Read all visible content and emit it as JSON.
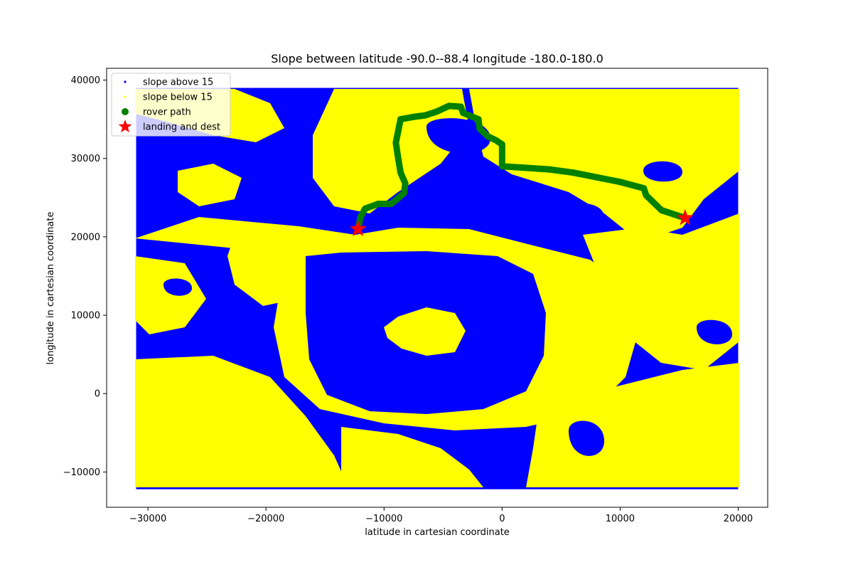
{
  "chart_data": {
    "type": "scatter",
    "title": "Slope between latitude -90.0--88.4 longitude -180.0-180.0",
    "xlabel": "latitude in cartesian coordinate",
    "ylabel": "longitude in cartesian coordinate",
    "xlim": [
      -33500,
      22500
    ],
    "ylim": [
      -14500,
      41500
    ],
    "xticks": [
      -30000,
      -20000,
      -10000,
      0,
      10000,
      20000
    ],
    "yticks": [
      -10000,
      0,
      10000,
      20000,
      30000,
      40000
    ],
    "xtick_labels": [
      "−30000",
      "−20000",
      "−10000",
      "0",
      "10000",
      "20000"
    ],
    "ytick_labels": [
      "−10000",
      "0",
      "10000",
      "20000",
      "30000",
      "40000"
    ],
    "grid": false,
    "legend_position": "top-left",
    "terrain_extent": {
      "x": [
        -31000,
        20000
      ],
      "y": [
        -12200,
        39000
      ]
    },
    "series": [
      {
        "name": "slope above 15",
        "color": "#0000ff",
        "marker": "point"
      },
      {
        "name": "slope below 15",
        "color": "#ffff00",
        "marker": "point"
      },
      {
        "name": "rover path",
        "color": "#008000",
        "marker": "circle",
        "points": [
          [
            -12200,
            21000
          ],
          [
            -12000,
            22500
          ],
          [
            -11600,
            23600
          ],
          [
            -10500,
            24200
          ],
          [
            -9400,
            24200
          ],
          [
            -8900,
            24800
          ],
          [
            -8300,
            25600
          ],
          [
            -8200,
            26800
          ],
          [
            -8600,
            28200
          ],
          [
            -8800,
            30000
          ],
          [
            -9000,
            32000
          ],
          [
            -8800,
            33500
          ],
          [
            -8600,
            35000
          ],
          [
            -7500,
            35300
          ],
          [
            -6500,
            35500
          ],
          [
            -5500,
            36000
          ],
          [
            -4500,
            36700
          ],
          [
            -3500,
            36600
          ],
          [
            -3300,
            35800
          ],
          [
            -2000,
            35000
          ],
          [
            -1900,
            33800
          ],
          [
            -1200,
            32800
          ],
          [
            -500,
            32300
          ],
          [
            0,
            31800
          ],
          [
            0,
            29000
          ],
          [
            2000,
            28800
          ],
          [
            4000,
            28600
          ],
          [
            6000,
            28200
          ],
          [
            8000,
            27600
          ],
          [
            10000,
            27000
          ],
          [
            12000,
            26200
          ],
          [
            12200,
            25300
          ],
          [
            13500,
            23400
          ],
          [
            15500,
            22400
          ]
        ]
      },
      {
        "name": "landing and dest",
        "color": "#ff0000",
        "marker": "star",
        "points": [
          [
            -12200,
            21000
          ],
          [
            15500,
            22400
          ]
        ]
      }
    ]
  }
}
